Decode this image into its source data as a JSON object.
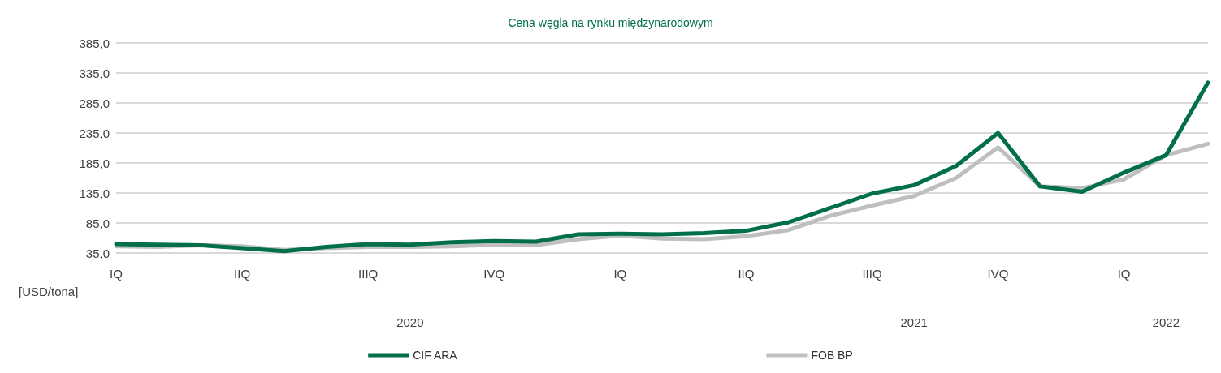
{
  "chart_data": {
    "type": "line",
    "title": "Cena węgla na rynku międzynarodowym",
    "ylabel": "[USD/tona]",
    "categories": [
      "IQ",
      null,
      null,
      "IIQ",
      null,
      null,
      "IIIQ",
      null,
      null,
      "IVQ",
      null,
      null,
      "IQ",
      null,
      null,
      "IIQ",
      null,
      null,
      "IIIQ",
      null,
      null,
      "IVQ",
      null,
      null,
      "IQ",
      null,
      null
    ],
    "series": [
      {
        "name": "CIF ARA",
        "color": "#006f4a",
        "values": [
          50,
          49,
          48,
          43,
          38,
          45,
          50,
          49,
          53,
          55,
          54,
          66,
          67,
          66,
          68,
          72,
          86,
          110,
          134,
          148,
          180,
          235,
          146,
          137,
          169,
          198,
          319
        ]
      },
      {
        "name": "FOB BP",
        "color": "#bfbfbf",
        "values": [
          46,
          45,
          48,
          46,
          40,
          43,
          45,
          45,
          46,
          49,
          48,
          58,
          64,
          59,
          58,
          63,
          73,
          97,
          114,
          130,
          160,
          211,
          146,
          143,
          158,
          198,
          217
        ]
      }
    ],
    "ylim": [
      35,
      385
    ],
    "yticks": [
      {
        "value": 35,
        "label": "35,0"
      },
      {
        "value": 85,
        "label": "85,0"
      },
      {
        "value": 135,
        "label": "135,0"
      },
      {
        "value": 185,
        "label": "185,0"
      },
      {
        "value": 235,
        "label": "235,0"
      },
      {
        "value": 285,
        "label": "285,0"
      },
      {
        "value": 335,
        "label": "335,0"
      },
      {
        "value": 385,
        "label": "385,0"
      }
    ],
    "grid": "y",
    "legend": "bottom",
    "marker": "none",
    "line_style": "solid",
    "annotations": [
      "2020",
      "2021",
      "2022"
    ]
  }
}
